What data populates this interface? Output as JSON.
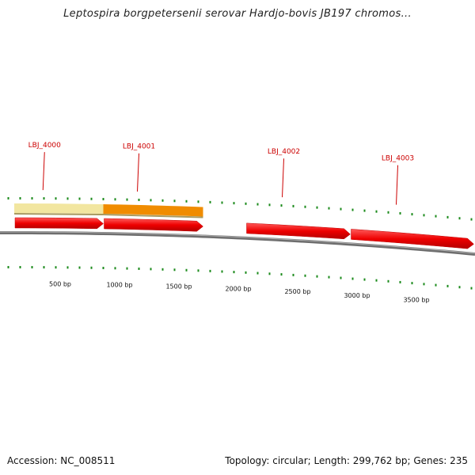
{
  "title": "Leptospira borgpetersenii serovar Hardjo-bovis JB197 chromos...",
  "genes": [
    {
      "label": "LBJ_4000",
      "start": 0,
      "end": 750,
      "strand": 1,
      "color": "#f2e6a0"
    },
    {
      "label": "LBJ_4001",
      "start": 750,
      "end": 1590,
      "strand": 1,
      "color": "#f08c00"
    },
    {
      "label": "LBJ_4002",
      "start": 1950,
      "end": 2830,
      "strand": 1,
      "color": "#ee0000"
    },
    {
      "label": "LBJ_4003",
      "start": 2830,
      "end": 3870,
      "strand": 1,
      "color": "#ee0000"
    }
  ],
  "cds": [
    {
      "start": 0,
      "end": 750
    },
    {
      "start": 750,
      "end": 1590
    },
    {
      "start": 1950,
      "end": 2830
    },
    {
      "start": 2830,
      "end": 3870
    }
  ],
  "colors": {
    "cds": "#ee0000",
    "ticks": "#1a8a1a",
    "backbone": "#808080",
    "gene_label": "#cc0000"
  },
  "axis": {
    "labels": [
      "500 bp",
      "1000 bp",
      "1500 bp",
      "2000 bp",
      "2500 bp",
      "3000 bp",
      "3500 bp"
    ],
    "label_values": [
      500,
      1000,
      1500,
      2000,
      2500,
      3000,
      3500
    ]
  },
  "footer": {
    "accession": "Accession: NC_008511",
    "summary": "Topology: circular; Length: 299,762 bp; Genes: 235"
  }
}
